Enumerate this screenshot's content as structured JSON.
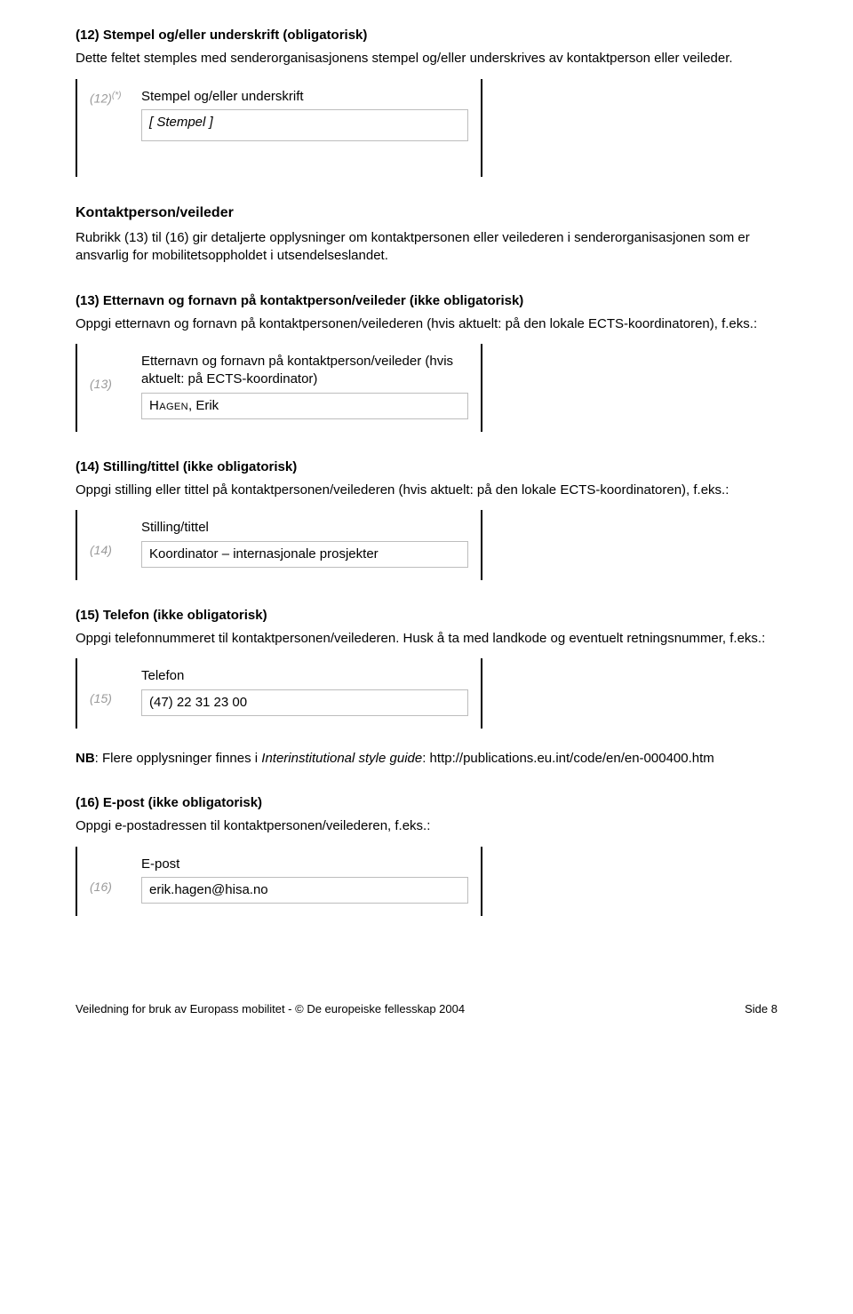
{
  "s12": {
    "heading": "(12) Stempel og/eller underskrift (obligatorisk)",
    "desc": "Dette feltet stemples med senderorganisasjonens stempel og/eller underskrives av kontaktperson eller veileder.",
    "fieldNum": "(12)",
    "fieldStar": "(*)",
    "fieldLabel": "Stempel og/eller underskrift",
    "fieldValue": "[ Stempel ]"
  },
  "kp": {
    "heading": "Kontaktperson/veileder",
    "desc": "Rubrikk (13) til (16) gir detaljerte opplysninger om kontaktpersonen eller veilederen i senderorganisasjonen som er ansvarlig for mobilitetsoppholdet i utsendelseslandet."
  },
  "s13": {
    "heading": "(13) Etternavn og fornavn på kontaktperson/veileder (ikke obligatorisk)",
    "desc": "Oppgi etternavn og fornavn på kontaktpersonen/veilederen (hvis aktuelt: på den lokale ECTS-koordinatoren), f.eks.:",
    "fieldNum": "(13)",
    "fieldLabel": "Etternavn og fornavn på kontaktperson/veileder (hvis aktuelt: på ECTS-koordinator)",
    "fieldSurname": "Hagen",
    "fieldRest": ", Erik"
  },
  "s14": {
    "heading": "(14) Stilling/tittel (ikke obligatorisk)",
    "desc": "Oppgi stilling eller tittel på kontaktpersonen/veilederen (hvis aktuelt: på den lokale ECTS-koordinatoren), f.eks.:",
    "fieldNum": "(14)",
    "fieldLabel": "Stilling/tittel",
    "fieldValue": "Koordinator – internasjonale prosjekter"
  },
  "s15": {
    "heading": "(15) Telefon (ikke obligatorisk)",
    "desc": "Oppgi telefonnummeret til kontaktpersonen/veilederen. Husk å ta med landkode og eventuelt retningsnummer, f.eks.:",
    "fieldNum": "(15)",
    "fieldLabel": "Telefon",
    "fieldValue": "(47) 22 31 23 00",
    "noteBold": "NB",
    "noteRest": ": Flere opplysninger finnes i ",
    "noteItalic": "Interinstitutional style guide",
    "noteTail": ": http://publications.eu.int/code/en/en-000400.htm"
  },
  "s16": {
    "heading": "(16) E-post (ikke obligatorisk)",
    "desc": "Oppgi e-postadressen til kontaktpersonen/veilederen, f.eks.:",
    "fieldNum": "(16)",
    "fieldLabel": "E-post",
    "fieldValue": "erik.hagen@hisa.no"
  },
  "footer": {
    "left": "Veiledning for bruk av Europass mobilitet  -  © De europeiske fellesskap 2004",
    "right": "Side 8"
  }
}
